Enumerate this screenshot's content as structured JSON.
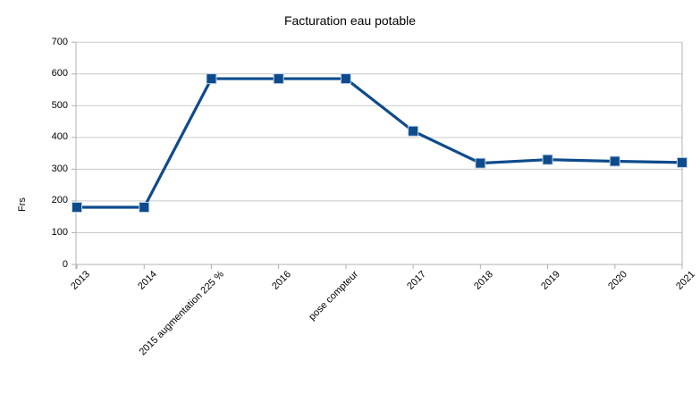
{
  "title": "Facturation eau potable",
  "colors": {
    "series": "#0d4b8c",
    "marker_border": "#bcd0e8",
    "grid": "#c9c9c9",
    "axis": "#b0b0b0",
    "text": "#000000",
    "background": "#ffffff"
  },
  "chart_data": {
    "type": "line",
    "title": "Facturation eau potable",
    "xlabel": "",
    "ylabel": "Frs",
    "categories": [
      "2013",
      "2014",
      "2015 augmentation 225 %",
      "2016",
      "pose compteur",
      "2017",
      "2018",
      "2019",
      "2020",
      "2021"
    ],
    "series": [
      {
        "name": "Facturation eau potable",
        "values": [
          180,
          180,
          585,
          585,
          585,
          420,
          319,
          330,
          325,
          321
        ]
      }
    ],
    "ylim": [
      0,
      700
    ],
    "y_ticks": [
      0,
      100,
      200,
      300,
      400,
      500,
      600,
      700
    ],
    "grid": "horizontal",
    "legend": "none",
    "marker": "square"
  }
}
